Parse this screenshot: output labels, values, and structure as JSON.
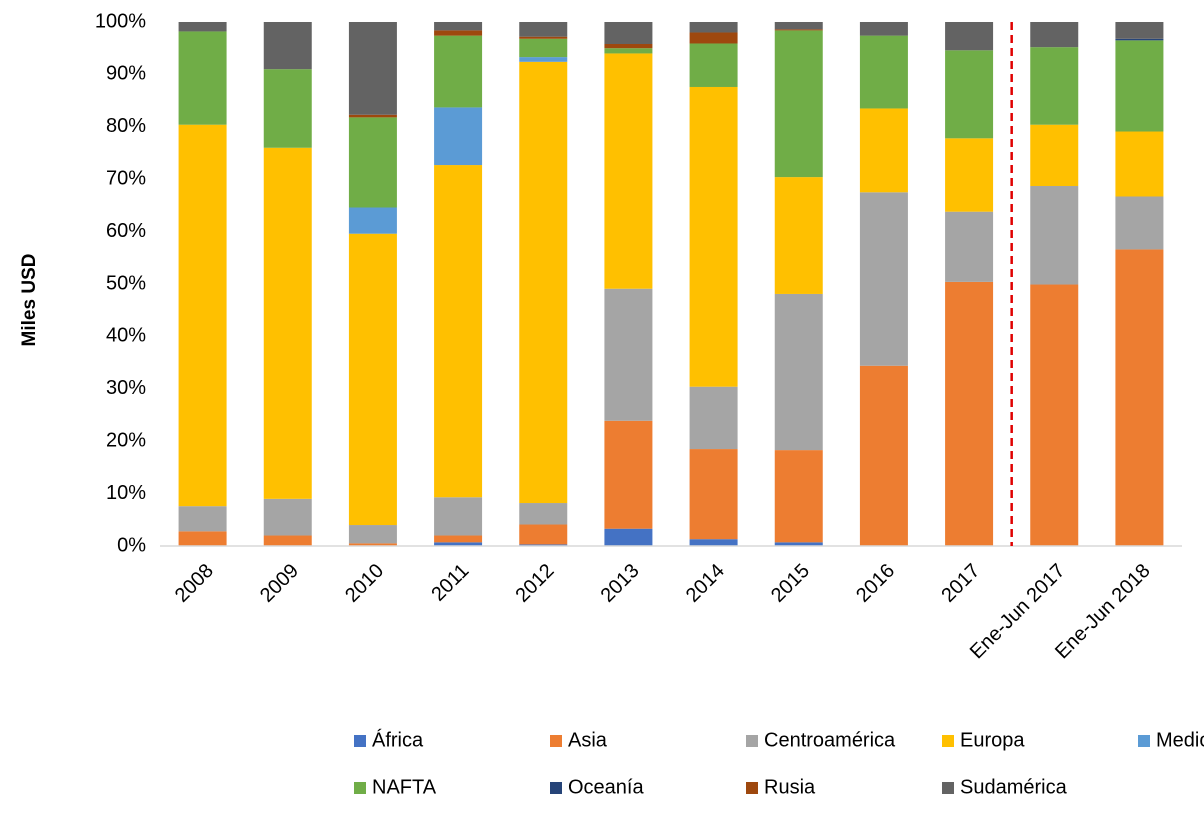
{
  "chart_data": {
    "type": "stacked_bar_percent",
    "y_label": "Miles USD",
    "categories": [
      "2008",
      "2009",
      "2010",
      "2011",
      "2012",
      "2013",
      "2014",
      "2015",
      "2016",
      "2017",
      "Ene-Jun 2017",
      "Ene-Jun 2018"
    ],
    "series": [
      {
        "name": "África",
        "color": "#4472c4",
        "values": [
          0,
          0,
          0,
          0.7,
          0.3,
          3.3,
          1.3,
          0.7,
          0,
          0,
          0,
          0
        ]
      },
      {
        "name": "Asia",
        "color": "#ed7d31",
        "values": [
          2.8,
          2.0,
          0.5,
          1.3,
          3.8,
          20.6,
          17.2,
          17.6,
          34.4,
          50.4,
          49.9,
          56.6
        ]
      },
      {
        "name": "Centroamérica",
        "color": "#a5a5a5",
        "values": [
          4.8,
          7.0,
          3.5,
          7.3,
          4.1,
          25.2,
          11.9,
          29.8,
          33.1,
          13.4,
          18.8,
          10.1
        ]
      },
      {
        "name": "Europa",
        "color": "#ffc000",
        "values": [
          72.8,
          67.0,
          55.6,
          63.4,
          84.2,
          44.9,
          57.2,
          22.3,
          16.0,
          14.0,
          11.7,
          12.4
        ]
      },
      {
        "name": "Medio Oriente",
        "color": "#5b9bd5",
        "values": [
          0,
          0,
          5.0,
          11.0,
          0.9,
          0,
          0,
          0,
          0,
          0,
          0,
          0
        ]
      },
      {
        "name": "NAFTA",
        "color": "#70ad47",
        "values": [
          17.8,
          15.0,
          17.2,
          13.7,
          3.5,
          1.0,
          8.3,
          28.0,
          13.9,
          16.8,
          14.8,
          17.4
        ]
      },
      {
        "name": "Oceanía",
        "color": "#264478",
        "values": [
          0,
          0,
          0,
          0,
          0,
          0,
          0,
          0,
          0,
          0,
          0,
          0.3
        ]
      },
      {
        "name": "Rusia",
        "color": "#9e480e",
        "values": [
          0,
          0,
          0.5,
          1.0,
          0.4,
          0.8,
          2.1,
          0.2,
          0,
          0,
          0,
          0
        ]
      },
      {
        "name": "Sudamérica",
        "color": "#636363",
        "values": [
          1.8,
          9.0,
          17.7,
          1.6,
          2.8,
          4.2,
          2.0,
          1.4,
          2.6,
          5.4,
          4.8,
          3.2
        ]
      }
    ],
    "ylim": [
      0,
      100
    ],
    "yticks": [
      {
        "value": 0,
        "label": "0%"
      },
      {
        "value": 10,
        "label": "10%"
      },
      {
        "value": 20,
        "label": "20%"
      },
      {
        "value": 30,
        "label": "30%"
      },
      {
        "value": 40,
        "label": "40%"
      },
      {
        "value": 50,
        "label": "50%"
      },
      {
        "value": 60,
        "label": "60%"
      },
      {
        "value": 70,
        "label": "70%"
      },
      {
        "value": 80,
        "label": "80%"
      },
      {
        "value": 90,
        "label": "90%"
      },
      {
        "value": 100,
        "label": "100%"
      }
    ],
    "grid": false,
    "legend": "bottom"
  }
}
